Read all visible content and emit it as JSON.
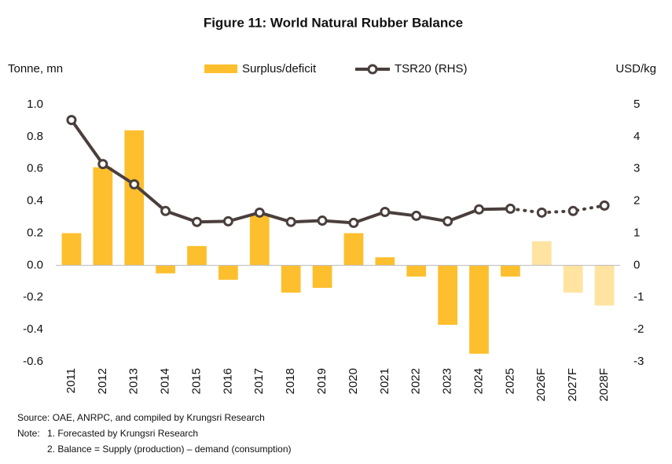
{
  "chart_data": {
    "type": "bar_line",
    "title": "Figure 11: World Natural Rubber Balance",
    "y_label": "Tonne, mn",
    "y2_label": "USD/kg",
    "categories": [
      "2011",
      "2012",
      "2013",
      "2014",
      "2015",
      "2016",
      "2017",
      "2018",
      "2019",
      "2020",
      "2021",
      "2022",
      "2023",
      "2024",
      "2025",
      "2026F",
      "2027F",
      "2028F"
    ],
    "series": [
      {
        "name": "Surplus/deficit",
        "type": "bar",
        "color": "#fdbf2d",
        "forecast_color": "#fee3a1",
        "values": [
          0.2,
          0.61,
          0.84,
          -0.05,
          0.12,
          -0.09,
          0.32,
          -0.17,
          -0.14,
          0.2,
          0.05,
          -0.07,
          -0.37,
          -0.55,
          -0.07,
          0.15,
          -0.17,
          -0.25
        ]
      },
      {
        "name": "TSR20 (RHS)",
        "type": "line",
        "axis": "y2",
        "color": "#4a3f3c",
        "values": [
          4.52,
          3.15,
          2.52,
          1.69,
          1.35,
          1.37,
          1.64,
          1.35,
          1.39,
          1.32,
          1.66,
          1.54,
          1.37,
          1.74,
          1.76,
          1.64,
          1.69,
          1.86
        ]
      }
    ],
    "ylim": [
      -0.6,
      1.0
    ],
    "yticks": [
      -0.6,
      -0.4,
      -0.2,
      {
        "value": 0,
        "label": "0.0"
      },
      0.2,
      0.4,
      0.6,
      0.8,
      {
        "value": 1,
        "label": "1.0"
      }
    ],
    "y2lim": [
      -3,
      5
    ],
    "y2ticks": [
      -3,
      -2,
      -1,
      0,
      1,
      2,
      3,
      4,
      5
    ],
    "source": "Source: OAE, ANRPC, and compiled by Krungsri Research",
    "note_label": "Note:",
    "notes": [
      "1. Forecasted by Krungsri Research",
      "2. Balance = Supply (production) – demand (consumption)"
    ]
  }
}
